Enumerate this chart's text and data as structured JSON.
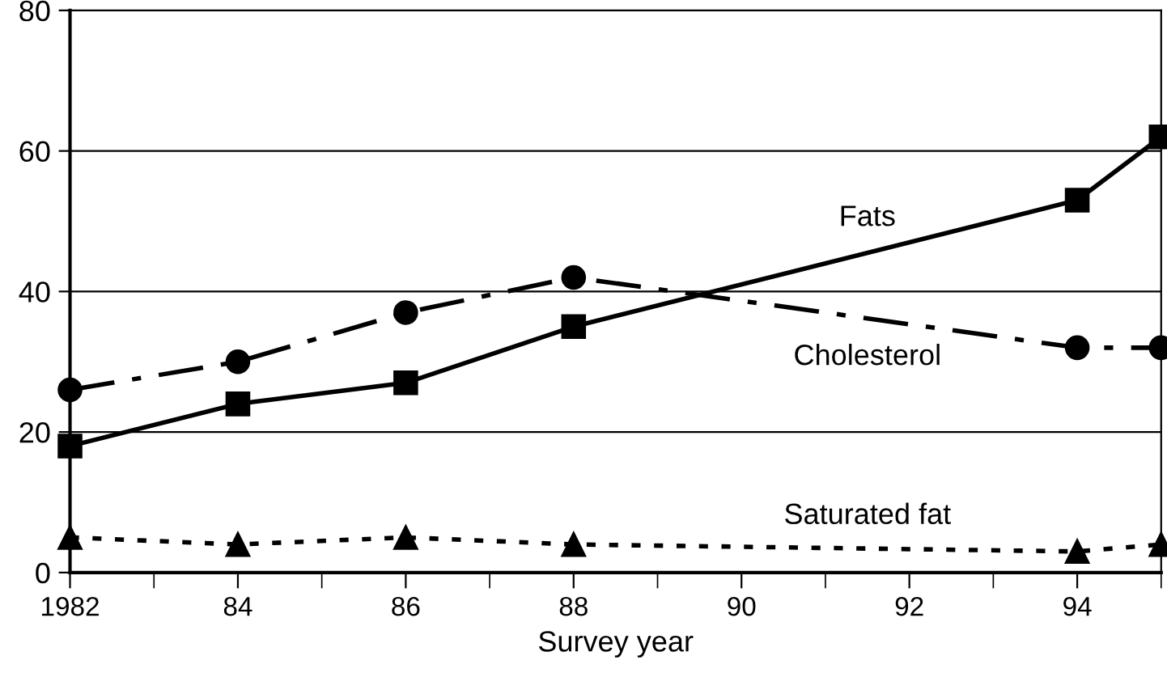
{
  "chart_data": {
    "type": "line",
    "xlabel": "Survey year",
    "x": [
      1982,
      1984,
      1986,
      1988,
      1994,
      1995
    ],
    "series": [
      {
        "name": "Fats",
        "color": "#000000",
        "marker": "square",
        "line_style": "solid",
        "values": [
          18,
          24,
          27,
          35,
          53,
          62
        ]
      },
      {
        "name": "Cholesterol",
        "color": "#000000",
        "marker": "circle",
        "line_style": "dashdot",
        "values": [
          26,
          30,
          37,
          42,
          32,
          32
        ]
      },
      {
        "name": "Saturated fat",
        "color": "#000000",
        "marker": "triangle",
        "line_style": "dotted",
        "values": [
          5,
          4,
          5,
          4,
          3,
          4
        ]
      }
    ],
    "xlim": [
      1982,
      1995
    ],
    "xticks": [
      1982,
      {
        "value": 1983,
        "label": null
      },
      {
        "value": 1984,
        "label": "84"
      },
      {
        "value": 1985,
        "label": null
      },
      {
        "value": 1986,
        "label": "86"
      },
      {
        "value": 1987,
        "label": null
      },
      {
        "value": 1988,
        "label": "88"
      },
      {
        "value": 1989,
        "label": null
      },
      {
        "value": 1990,
        "label": "90"
      },
      {
        "value": 1991,
        "label": null
      },
      {
        "value": 1992,
        "label": "92"
      },
      {
        "value": 1993,
        "label": null
      },
      {
        "value": 1994,
        "label": "94"
      },
      {
        "value": 1995,
        "label": null
      }
    ],
    "ylim": [
      0,
      80
    ],
    "yticks": [
      0,
      20,
      40,
      60,
      80
    ],
    "grid": "y",
    "legend": false
  }
}
